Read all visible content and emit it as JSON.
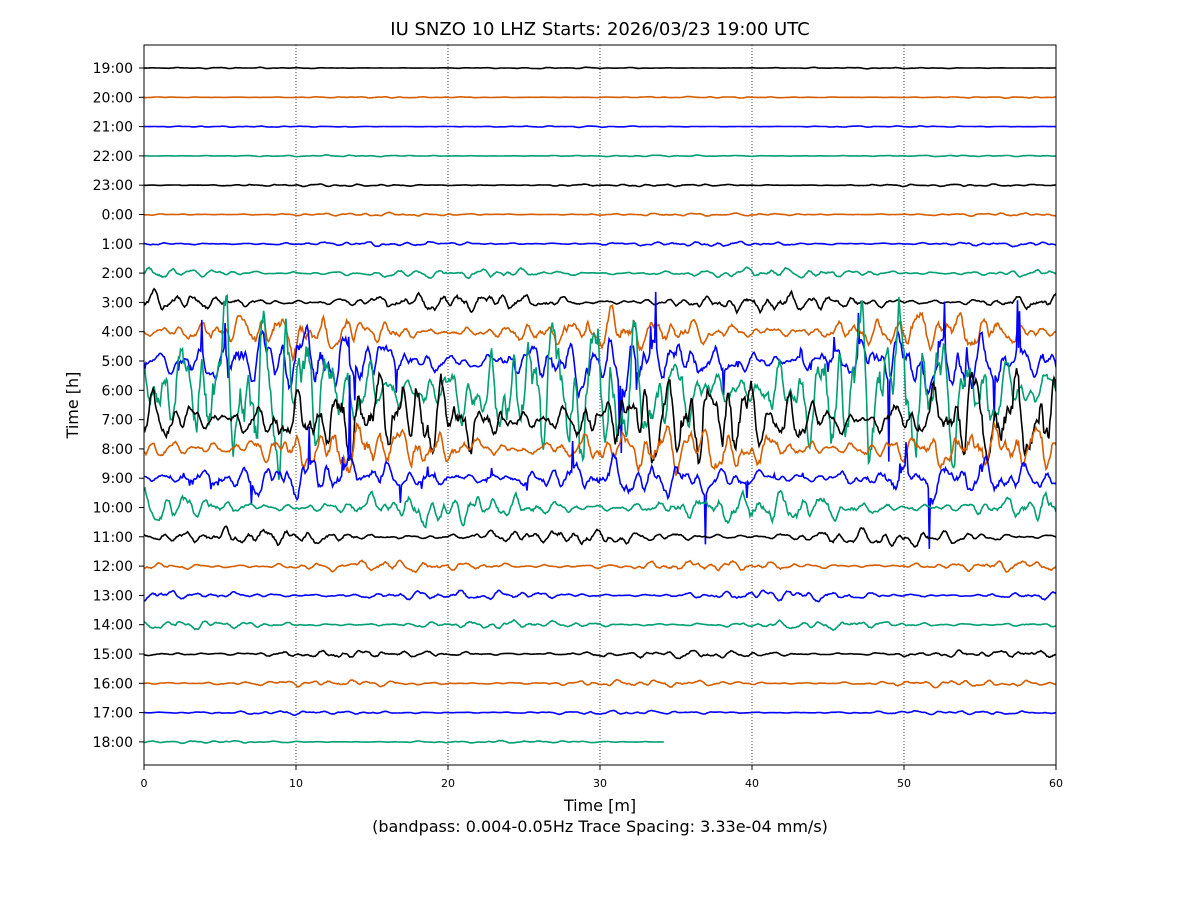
{
  "chart_data": {
    "type": "line",
    "title": "IU SNZO 10 LHZ  Starts: 2026/03/23 19:00 UTC",
    "xlabel": "Time [m]",
    "subtitle": "(bandpass: 0.004-0.05Hz  Trace Spacing: 3.33e-04 mm/s)",
    "ylabel": "Time [h]",
    "xlim": [
      0,
      60
    ],
    "xticks": [
      "0",
      "10",
      "20",
      "30",
      "40",
      "50",
      "60"
    ],
    "grid": "vertical dotted at 10-minute intervals",
    "colors": [
      "#000000",
      "#d55e00",
      "#0000ff",
      "#009e73"
    ],
    "rows": [
      {
        "label": "19:00",
        "amplitude": 0.04,
        "end_minute": 60
      },
      {
        "label": "20:00",
        "amplitude": 0.04,
        "end_minute": 60
      },
      {
        "label": "21:00",
        "amplitude": 0.04,
        "end_minute": 60
      },
      {
        "label": "22:00",
        "amplitude": 0.05,
        "end_minute": 60
      },
      {
        "label": "23:00",
        "amplitude": 0.08,
        "end_minute": 60
      },
      {
        "label": "0:00",
        "amplitude": 0.1,
        "end_minute": 60
      },
      {
        "label": "1:00",
        "amplitude": 0.15,
        "end_minute": 60
      },
      {
        "label": "2:00",
        "amplitude": 0.3,
        "end_minute": 60
      },
      {
        "label": "3:00",
        "amplitude": 0.6,
        "end_minute": 60
      },
      {
        "label": "4:00",
        "amplitude": 1.2,
        "end_minute": 60
      },
      {
        "label": "5:00",
        "amplitude": 2.0,
        "end_minute": 60
      },
      {
        "label": "6:00",
        "amplitude": 5.0,
        "end_minute": 60
      },
      {
        "label": "7:00",
        "amplitude": 3.0,
        "end_minute": 60
      },
      {
        "label": "8:00",
        "amplitude": 1.6,
        "end_minute": 60
      },
      {
        "label": "9:00",
        "amplitude": 1.2,
        "end_minute": 60
      },
      {
        "label": "10:00",
        "amplitude": 1.0,
        "end_minute": 60
      },
      {
        "label": "11:00",
        "amplitude": 0.5,
        "end_minute": 60
      },
      {
        "label": "12:00",
        "amplitude": 0.35,
        "end_minute": 60
      },
      {
        "label": "13:00",
        "amplitude": 0.3,
        "end_minute": 60
      },
      {
        "label": "14:00",
        "amplitude": 0.25,
        "end_minute": 60
      },
      {
        "label": "15:00",
        "amplitude": 0.25,
        "end_minute": 60
      },
      {
        "label": "16:00",
        "amplitude": 0.2,
        "end_minute": 60
      },
      {
        "label": "17:00",
        "amplitude": 0.12,
        "end_minute": 60
      },
      {
        "label": "18:00",
        "amplitude": 0.08,
        "end_minute": 34.2
      }
    ]
  }
}
